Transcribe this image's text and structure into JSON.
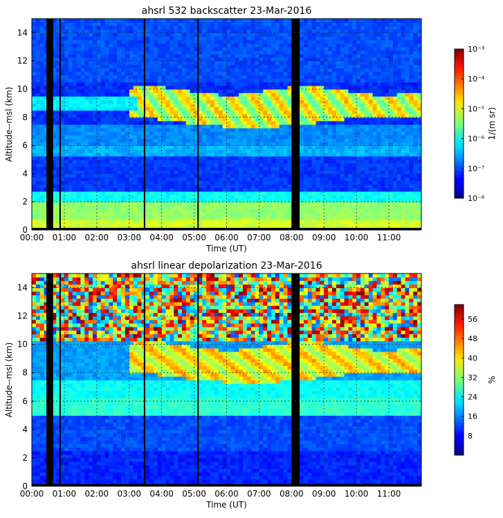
{
  "chart_data": [
    {
      "type": "heatmap",
      "title": "ahsrl  532 backscatter     23-Mar-2016",
      "xlabel": "Time (UT)",
      "ylabel": "Altitude--msl (km)",
      "x_ticks": [
        "00:00",
        "01:00",
        "02:00",
        "03:00",
        "04:00",
        "05:00",
        "06:00",
        "07:00",
        "08:00",
        "09:00",
        "10:00",
        "11:00"
      ],
      "y_ticks": [
        "0",
        "2",
        "4",
        "6",
        "8",
        "10",
        "12",
        "14"
      ],
      "xlim_hours": [
        0,
        12
      ],
      "ylim_km": [
        0,
        15
      ],
      "grid": true,
      "colorbar": {
        "label": "1/(m sr)",
        "scale": "log",
        "ticks": [
          "10⁻⁸",
          "10⁻⁷",
          "10⁻⁶",
          "10⁻⁵",
          "10⁻⁴",
          "10⁻³"
        ],
        "range": [
          1e-08,
          0.001
        ]
      },
      "features": {
        "cirrus_layer_km": [
          7.7,
          10.3
        ],
        "boundary_layer_top_km": 2.0,
        "data_gap_hours": [
          8.0,
          8.25
        ]
      }
    },
    {
      "type": "heatmap",
      "title": "ahsrl  linear depolarization     23-Mar-2016",
      "xlabel": "Time (UT)",
      "ylabel": "Altitude--msl (km)",
      "x_ticks": [
        "00:00",
        "01:00",
        "02:00",
        "03:00",
        "04:00",
        "05:00",
        "06:00",
        "07:00",
        "08:00",
        "09:00",
        "10:00",
        "11:00"
      ],
      "y_ticks": [
        "0",
        "2",
        "4",
        "6",
        "8",
        "10",
        "12",
        "14"
      ],
      "xlim_hours": [
        0,
        12
      ],
      "ylim_km": [
        0,
        15
      ],
      "grid": true,
      "colorbar": {
        "label": "%",
        "scale": "linear",
        "ticks": [
          "8",
          "16",
          "24",
          "32",
          "40",
          "48",
          "56"
        ],
        "range": [
          0,
          62
        ]
      },
      "features": {
        "cirrus_layer_km": [
          7.7,
          10.3
        ],
        "data_gap_hours": [
          8.0,
          8.25
        ]
      }
    }
  ]
}
